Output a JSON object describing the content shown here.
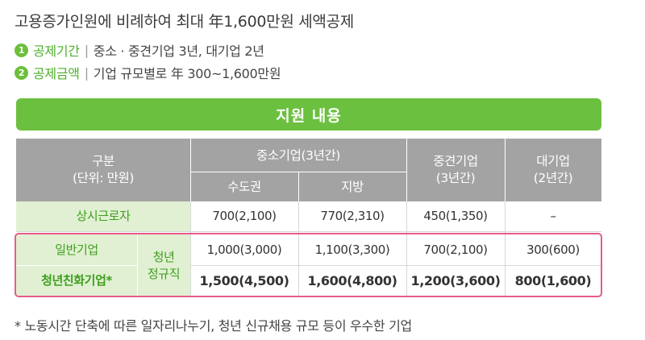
{
  "title": "고용증가인원에 비례하여 최대 年1,600만원 세액공제",
  "bullets": [
    {
      "num": "1",
      "label": "공제기간",
      "text": "중소 · 중견기업 3년, 대기업 2년"
    },
    {
      "num": "2",
      "label": "공제금액",
      "text": "기업 규모별로 年 300~1,600만원"
    }
  ],
  "bar_title": "지원 내용",
  "table": {
    "header_category": "구분",
    "header_unit": "(단위: 만원)",
    "header_sme": "중소기업(3년간)",
    "header_capital": "수도권",
    "header_region": "지방",
    "header_midsize": "중견기업",
    "header_midsize_period": "(3년간)",
    "header_large": "대기업",
    "header_large_period": "(2년간)",
    "row_regular": {
      "label": "상시근로자",
      "capital": "700(2,100)",
      "region": "770(2,310)",
      "midsize": "450(1,350)",
      "large": "–"
    },
    "youth_label_1": "청년",
    "youth_label_2": "정규직",
    "row_general": {
      "label": "일반기업",
      "capital": "1,000(3,000)",
      "region": "1,100(3,300)",
      "midsize": "700(2,100)",
      "large": "300(600)"
    },
    "row_friendly": {
      "label": "청년친화기업*",
      "capital": "1,500(4,500)",
      "region": "1,600(4,800)",
      "midsize": "1,200(3,600)",
      "large": "800(1,600)"
    }
  },
  "footnote": "* 노동시간 단축에 따른 일자리나누기, 청년 신규채용 규모 등이 우수한 기업"
}
